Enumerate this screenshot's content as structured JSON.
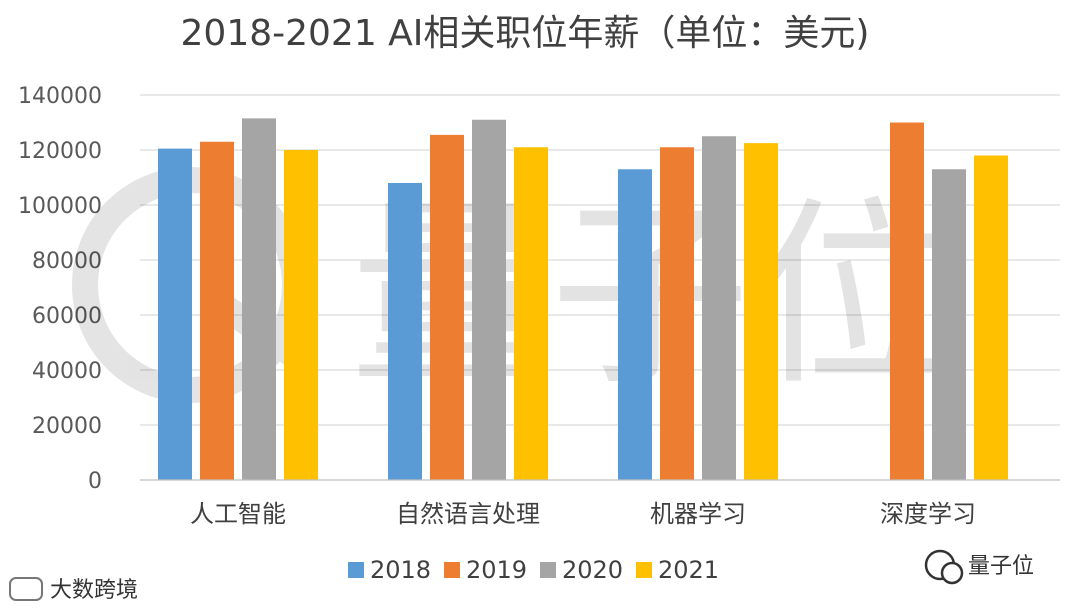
{
  "chart_data": {
    "type": "bar",
    "title": "2018-2021 AI相关职位年薪（单位：美元)",
    "xlabel": "",
    "ylabel": "",
    "categories": [
      "人工智能",
      "自然语言处理",
      "机器学习",
      "深度学习"
    ],
    "series": [
      {
        "name": "2018",
        "color": "#5b9bd5",
        "values": [
          120500,
          108000,
          113000,
          null
        ]
      },
      {
        "name": "2019",
        "color": "#ed7d31",
        "values": [
          123000,
          125500,
          121000,
          130000
        ]
      },
      {
        "name": "2020",
        "color": "#a5a5a5",
        "values": [
          131500,
          131000,
          125000,
          113000
        ]
      },
      {
        "name": "2021",
        "color": "#ffc000",
        "values": [
          120000,
          121000,
          122500,
          118000
        ]
      }
    ],
    "ylim": [
      0,
      140000
    ],
    "yticks": [
      0,
      20000,
      40000,
      60000,
      80000,
      100000,
      120000,
      140000
    ],
    "grid": true,
    "legend": "bottom"
  },
  "watermarks": {
    "bottom_left": "大数跨境",
    "bottom_right": "量子位",
    "center": "量子位"
  }
}
